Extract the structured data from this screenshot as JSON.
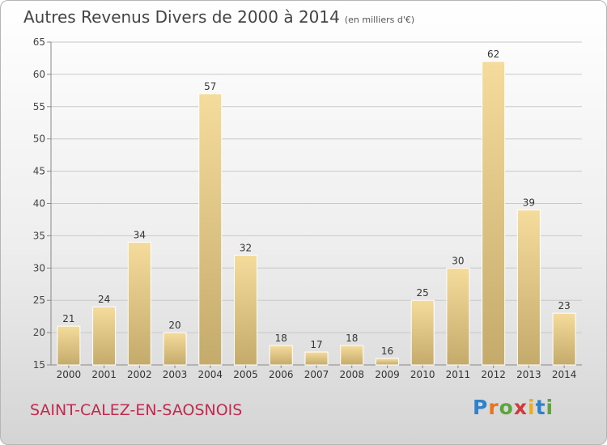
{
  "header": {
    "title": "Autres Revenus Divers de 2000 à 2014",
    "unit": "(en milliers d'€)"
  },
  "footer": {
    "city": "SAINT-CALEZ-EN-SAOSNOIS",
    "brand": "Proxiti"
  },
  "colors": {
    "bar_light": "#f5dc9c",
    "bar_dark": "#c4aa6b",
    "city": "#c0284e"
  },
  "chart_data": {
    "type": "bar",
    "title": "Autres Revenus Divers de 2000 à 2014",
    "subtitle": "(en milliers d'€)",
    "categories": [
      "2000",
      "2001",
      "2002",
      "2003",
      "2004",
      "2005",
      "2006",
      "2007",
      "2008",
      "2009",
      "2010",
      "2011",
      "2012",
      "2013",
      "2014"
    ],
    "values": [
      21,
      24,
      34,
      20,
      57,
      32,
      18,
      17,
      18,
      16,
      25,
      30,
      62,
      39,
      23
    ],
    "ylim": [
      15,
      65
    ],
    "yticks": [
      15,
      20,
      25,
      30,
      35,
      40,
      45,
      50,
      55,
      60,
      65
    ],
    "grid": true
  }
}
